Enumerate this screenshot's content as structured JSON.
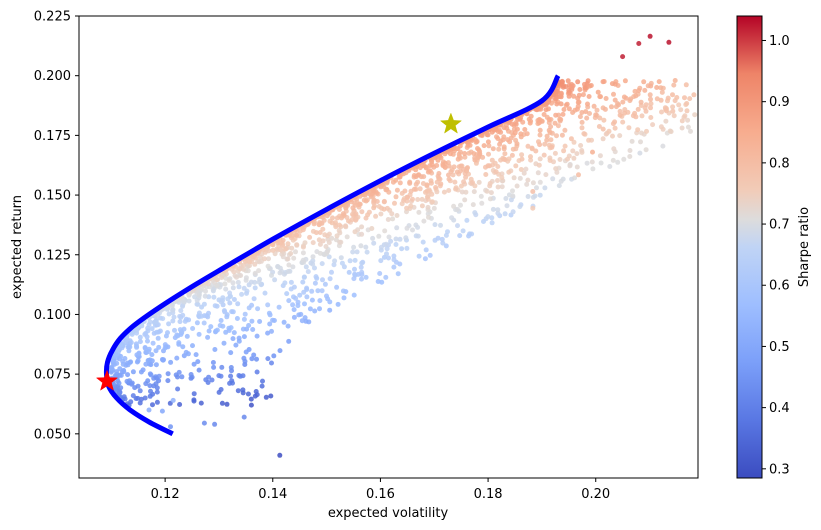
{
  "chart_data": {
    "type": "scatter",
    "title": "",
    "xlabel": "expected volatility",
    "ylabel": "expected return",
    "xlim": [
      0.104,
      0.219
    ],
    "ylim": [
      0.0315,
      0.225
    ],
    "xticks": [
      0.12,
      0.14,
      0.16,
      0.18,
      0.2
    ],
    "xtick_labels": [
      "0.12",
      "0.14",
      "0.16",
      "0.18",
      "0.20"
    ],
    "yticks": [
      0.05,
      0.075,
      0.1,
      0.125,
      0.15,
      0.175,
      0.2,
      0.225
    ],
    "ytick_labels": [
      "0.050",
      "0.075",
      "0.100",
      "0.125",
      "0.150",
      "0.175",
      "0.200",
      "0.225"
    ],
    "grid": false,
    "colorbar": {
      "label": "Sharpe ratio",
      "range": [
        0.285,
        1.04
      ],
      "ticks": [
        0.3,
        0.4,
        0.5,
        0.6,
        0.7,
        0.8,
        0.9,
        1.0
      ],
      "tick_labels": [
        "0.3",
        "0.4",
        "0.5",
        "0.6",
        "0.7",
        "0.8",
        "0.9",
        "1.0"
      ],
      "colormap": "coolwarm"
    },
    "series": [
      {
        "name": "efficient frontier",
        "kind": "line",
        "color": "#0000ff",
        "points": [
          [
            0.1214,
            0.05
          ],
          [
            0.117,
            0.055
          ],
          [
            0.1135,
            0.06
          ],
          [
            0.111,
            0.065
          ],
          [
            0.1095,
            0.07
          ],
          [
            0.1091,
            0.075
          ],
          [
            0.1093,
            0.08
          ],
          [
            0.1102,
            0.085
          ],
          [
            0.1117,
            0.09
          ],
          [
            0.114,
            0.095
          ],
          [
            0.117,
            0.1
          ],
          [
            0.121,
            0.106
          ],
          [
            0.126,
            0.113
          ],
          [
            0.132,
            0.121
          ],
          [
            0.14,
            0.1315
          ],
          [
            0.15,
            0.144
          ],
          [
            0.16,
            0.156
          ],
          [
            0.17,
            0.1675
          ],
          [
            0.18,
            0.1785
          ],
          [
            0.19,
            0.1895
          ],
          [
            0.193,
            0.2
          ]
        ]
      },
      {
        "name": "minimum volatility portfolio",
        "kind": "marker",
        "marker": "star",
        "color": "#ff0000",
        "x": 0.1092,
        "y": 0.072
      },
      {
        "name": "maximum Sharpe portfolio",
        "kind": "marker",
        "marker": "star",
        "color": "#bfbf00",
        "x": 0.1731,
        "y": 0.1797
      }
    ],
    "scatter_notes": {
      "description": "Random portfolios (approx. 2000) coloured by Sharpe ratio, densely filling the region below the frontier",
      "num_points": 2000,
      "seed": 7
    },
    "outlier_points": [
      {
        "x": 0.1413,
        "y": 0.041,
        "sharpe": 0.29
      },
      {
        "x": 0.1347,
        "y": 0.057,
        "sharpe": 0.42
      },
      {
        "x": 0.1273,
        "y": 0.0545,
        "sharpe": 0.43
      },
      {
        "x": 0.1292,
        "y": 0.054,
        "sharpe": 0.42
      },
      {
        "x": 0.1195,
        "y": 0.0595,
        "sharpe": 0.5
      },
      {
        "x": 0.1215,
        "y": 0.064,
        "sharpe": 0.53
      },
      {
        "x": 0.117,
        "y": 0.06,
        "sharpe": 0.52
      },
      {
        "x": 0.121,
        "y": 0.053,
        "sharpe": 0.45
      },
      {
        "x": 0.2101,
        "y": 0.2165,
        "sharpe": 1.03
      },
      {
        "x": 0.2136,
        "y": 0.214,
        "sharpe": 1.03
      },
      {
        "x": 0.208,
        "y": 0.2135,
        "sharpe": 1.02
      },
      {
        "x": 0.205,
        "y": 0.208,
        "sharpe": 1.02
      },
      {
        "x": 0.1994,
        "y": 0.168,
        "sharpe": 0.84
      },
      {
        "x": 0.1968,
        "y": 0.1585,
        "sharpe": 0.8
      },
      {
        "x": 0.1883,
        "y": 0.1445,
        "sharpe": 0.76
      },
      {
        "x": 0.1883,
        "y": 0.1515,
        "sharpe": 0.79
      }
    ]
  }
}
